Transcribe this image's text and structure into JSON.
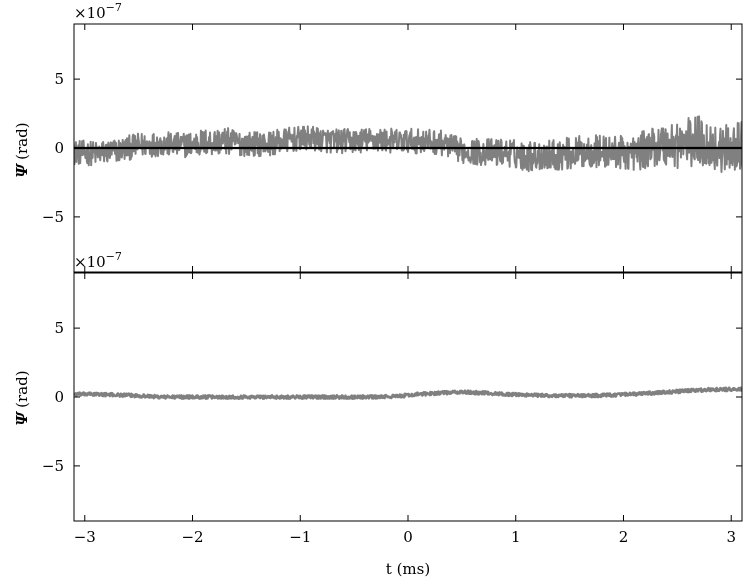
{
  "chart_data": [
    {
      "type": "line",
      "panel": "top",
      "xlabel": "",
      "ylabel_symbol": "Ψ",
      "ylabel_unit": "(rad)",
      "sci_multiplier": "×10",
      "sci_exponent": "−7",
      "xlim": [
        -3.1,
        3.1
      ],
      "ylim": [
        -9,
        9
      ],
      "xticks": [
        -3,
        -2,
        -1,
        0,
        1,
        2,
        3
      ],
      "yticks": [
        -5,
        0,
        5
      ],
      "ytick_labels": [
        "−5",
        "0",
        "5"
      ],
      "grid": false,
      "series": [
        {
          "color": "#808080",
          "style": "noisy-band",
          "x": [
            -3.1,
            -2.9,
            -2.7,
            -2.5,
            -2.3,
            -2.1,
            -1.9,
            -1.7,
            -1.5,
            -1.3,
            -1.1,
            -0.9,
            -0.7,
            -0.5,
            -0.3,
            -0.1,
            0.1,
            0.3,
            0.5,
            0.7,
            0.9,
            1.1,
            1.3,
            1.5,
            1.7,
            1.9,
            2.1,
            2.3,
            2.5,
            2.7,
            2.9,
            3.1
          ],
          "center": [
            -0.3,
            -0.4,
            -0.2,
            0.2,
            0.3,
            0.2,
            0.4,
            0.5,
            0.3,
            0.3,
            0.6,
            0.7,
            0.5,
            0.5,
            0.6,
            0.5,
            0.5,
            0.4,
            -0.2,
            -0.3,
            -0.3,
            -0.6,
            -0.5,
            -0.4,
            -0.2,
            -0.3,
            -0.4,
            0.2,
            0.3,
            0.5,
            -0.1,
            0.2
          ],
          "amplitude": [
            0.9,
            0.9,
            0.9,
            0.9,
            0.9,
            0.9,
            1.0,
            1.0,
            0.9,
            0.9,
            0.9,
            0.9,
            0.9,
            0.9,
            0.9,
            0.9,
            0.9,
            0.9,
            0.9,
            1.0,
            1.0,
            1.1,
            1.1,
            1.2,
            1.2,
            1.2,
            1.3,
            1.5,
            1.8,
            1.9,
            1.7,
            1.7
          ]
        },
        {
          "color": "#000000",
          "style": "line",
          "x": [
            -3.1,
            3.1
          ],
          "y": [
            0,
            0
          ]
        }
      ]
    },
    {
      "type": "line",
      "panel": "bottom",
      "xlabel": "t (ms)",
      "ylabel_symbol": "Ψ",
      "ylabel_unit": "(rad)",
      "sci_multiplier": "×10",
      "sci_exponent": "−7",
      "xlim": [
        -3.1,
        3.1
      ],
      "ylim": [
        -9,
        9
      ],
      "xticks": [
        -3,
        -2,
        -1,
        0,
        1,
        2,
        3
      ],
      "xtick_labels": [
        "−3",
        "−2",
        "−1",
        "0",
        "1",
        "2",
        "3"
      ],
      "yticks": [
        -5,
        0,
        5
      ],
      "ytick_labels": [
        "−5",
        "0",
        "5"
      ],
      "grid": false,
      "series": [
        {
          "color": "#808080",
          "style": "noisy-band",
          "x": [
            -3.1,
            -2.9,
            -2.7,
            -2.5,
            -2.3,
            -2.1,
            -1.9,
            -1.7,
            -1.5,
            -1.3,
            -1.1,
            -0.9,
            -0.7,
            -0.5,
            -0.3,
            -0.1,
            0.1,
            0.3,
            0.5,
            0.7,
            0.9,
            1.1,
            1.3,
            1.5,
            1.7,
            1.9,
            2.1,
            2.3,
            2.5,
            2.7,
            2.9,
            3.1
          ],
          "center": [
            0.2,
            0.2,
            0.15,
            0.1,
            0.0,
            0.0,
            0.0,
            0.0,
            0.0,
            0.0,
            0.0,
            0.0,
            0.0,
            0.0,
            0.0,
            0.05,
            0.2,
            0.3,
            0.35,
            0.3,
            0.2,
            0.15,
            0.1,
            0.1,
            0.1,
            0.15,
            0.2,
            0.3,
            0.4,
            0.5,
            0.55,
            0.55
          ],
          "amplitude": [
            0.12,
            0.12,
            0.12,
            0.12,
            0.12,
            0.12,
            0.12,
            0.12,
            0.12,
            0.12,
            0.12,
            0.12,
            0.12,
            0.12,
            0.12,
            0.12,
            0.12,
            0.12,
            0.12,
            0.12,
            0.12,
            0.12,
            0.12,
            0.12,
            0.12,
            0.12,
            0.12,
            0.12,
            0.12,
            0.12,
            0.12,
            0.12
          ]
        }
      ]
    }
  ]
}
